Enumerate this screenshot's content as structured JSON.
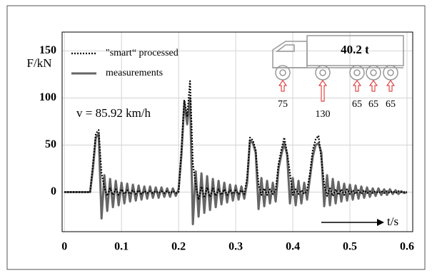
{
  "chart_data": {
    "type": "line",
    "y_label": "F/kN",
    "x_label": "t/s",
    "annotation": "v = 85.92 km/h",
    "truck_label": "40.2 t",
    "axle_loads": [
      75,
      130,
      65,
      65,
      65
    ],
    "xlim": [
      -0.004,
      0.61
    ],
    "ylim": [
      -42,
      170
    ],
    "xticks": [
      0,
      0.1,
      0.2,
      0.3,
      0.4,
      0.5,
      0.6
    ],
    "yticks": [
      0,
      50,
      100,
      150
    ],
    "grid": true,
    "legend": "upper left",
    "x": [
      0,
      0.005,
      0.01,
      0.015,
      0.02,
      0.025,
      0.03,
      0.035,
      0.04,
      0.045,
      0.05,
      0.055,
      0.06,
      0.065,
      0.07,
      0.075,
      0.08,
      0.085,
      0.09,
      0.095,
      0.1,
      0.105,
      0.11,
      0.115,
      0.12,
      0.125,
      0.13,
      0.135,
      0.14,
      0.145,
      0.15,
      0.155,
      0.16,
      0.165,
      0.17,
      0.175,
      0.18,
      0.185,
      0.19,
      0.195,
      0.2,
      0.205,
      0.21,
      0.215,
      0.22,
      0.225,
      0.23,
      0.235,
      0.24,
      0.245,
      0.25,
      0.255,
      0.26,
      0.265,
      0.27,
      0.275,
      0.28,
      0.285,
      0.29,
      0.295,
      0.3,
      0.305,
      0.31,
      0.315,
      0.32,
      0.325,
      0.33,
      0.335,
      0.34,
      0.345,
      0.35,
      0.355,
      0.36,
      0.365,
      0.37,
      0.375,
      0.38,
      0.385,
      0.39,
      0.395,
      0.4,
      0.405,
      0.41,
      0.415,
      0.42,
      0.425,
      0.43,
      0.435,
      0.44,
      0.445,
      0.45,
      0.455,
      0.46,
      0.465,
      0.47,
      0.475,
      0.48,
      0.485,
      0.49,
      0.495,
      0.5,
      0.505,
      0.51,
      0.515,
      0.52,
      0.525,
      0.53,
      0.535,
      0.54,
      0.545,
      0.55,
      0.555,
      0.56,
      0.565,
      0.57,
      0.575,
      0.58,
      0.585,
      0.59,
      0.595,
      0.6
    ],
    "series": [
      {
        "name": "\"smart“ processed",
        "color": "#000000",
        "style": "dotted",
        "values": [
          0,
          0,
          0,
          0,
          0,
          0,
          0,
          0,
          0,
          0,
          30,
          62,
          66,
          20,
          5,
          -4,
          4,
          -3,
          3,
          -3,
          3,
          -2,
          2,
          -2,
          2,
          -2,
          2,
          -2,
          1,
          -1,
          1,
          -1,
          1,
          -1,
          1,
          -1,
          1,
          -1,
          1,
          -1,
          0,
          45,
          98,
          80,
          118,
          30,
          8,
          -8,
          6,
          -6,
          5,
          -5,
          4,
          -4,
          3,
          -3,
          3,
          -3,
          2,
          -2,
          2,
          -2,
          2,
          -2,
          15,
          58,
          55,
          45,
          8,
          -3,
          4,
          -3,
          3,
          -2,
          2,
          30,
          45,
          58,
          42,
          20,
          -3,
          3,
          -2,
          2,
          -2,
          2,
          20,
          45,
          56,
          60,
          35,
          8,
          -4,
          4,
          -4,
          3,
          -3,
          3,
          -3,
          3,
          -2,
          2,
          -2,
          2,
          -2,
          2,
          -1,
          1,
          -1,
          1,
          -1,
          1,
          -1,
          1,
          -1,
          1,
          -1,
          1,
          0,
          0,
          0
        ]
      },
      {
        "name": "measurements",
        "color": "#666666",
        "style": "solid",
        "values": [
          0,
          0,
          0,
          0,
          0,
          0,
          0,
          0,
          0,
          0,
          25,
          58,
          62,
          -28,
          18,
          -20,
          14,
          -16,
          12,
          -14,
          10,
          -12,
          9,
          -10,
          8,
          -9,
          7,
          -8,
          6,
          -7,
          6,
          -6,
          5,
          -6,
          5,
          -5,
          4,
          -5,
          4,
          -4,
          3,
          40,
          96,
          72,
          100,
          -34,
          22,
          -26,
          20,
          -22,
          17,
          -19,
          14,
          -16,
          12,
          -13,
          10,
          -11,
          8,
          -9,
          7,
          -8,
          6,
          -7,
          10,
          55,
          52,
          42,
          -18,
          15,
          -15,
          12,
          -12,
          10,
          -10,
          25,
          40,
          52,
          40,
          -12,
          15,
          -14,
          12,
          -12,
          10,
          -8,
          15,
          38,
          50,
          52,
          42,
          -15,
          18,
          -14,
          14,
          -12,
          11,
          -10,
          9,
          -9,
          8,
          -8,
          7,
          -7,
          6,
          -6,
          5,
          -5,
          4,
          -4,
          4,
          -3,
          3,
          -3,
          3,
          -2,
          2,
          -2,
          1,
          -1,
          0
        ]
      }
    ]
  }
}
